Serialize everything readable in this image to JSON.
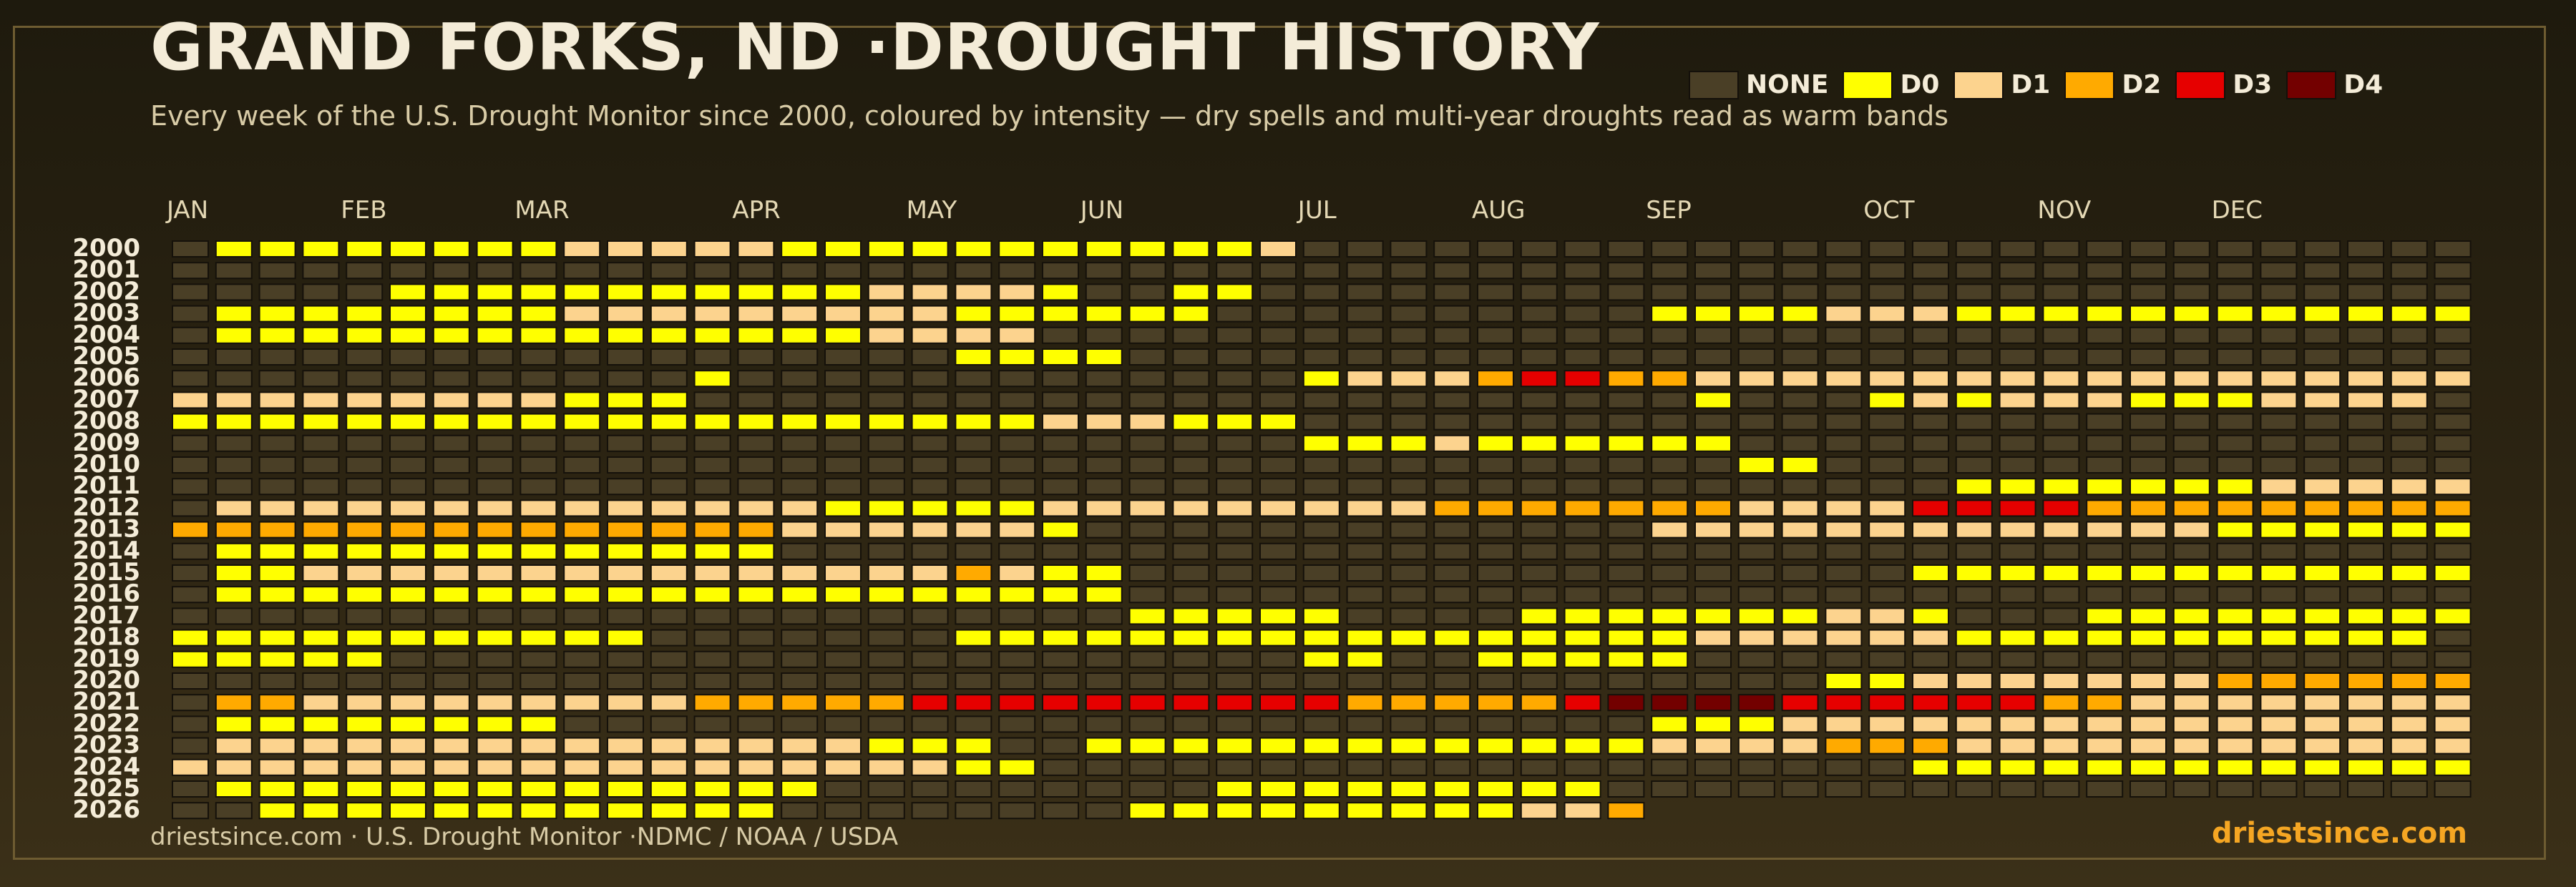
{
  "title": "GRAND FORKS, ND ·DROUGHT HISTORY",
  "subtitle": "Every week of the U.S. Drought Monitor since 2000, coloured by intensity — dry spells and multi-year droughts read as warm bands",
  "footer": {
    "source": "driestsince.com  · U.S. Drought Monitor ·NDMC / NOAA / USDA",
    "brand": "driestsince.com"
  },
  "colors": {
    "NONE": "#4a3f26",
    "D0": "#ffff00",
    "D1": "#fcd38e",
    "D2": "#ffaa00",
    "D3": "#e60000",
    "D4": "#730000",
    "background": "#2c2412",
    "text": "#f4ecd8",
    "accent": "#f5a623"
  },
  "legend": [
    {
      "key": "NONE",
      "label": "NONE"
    },
    {
      "key": "D0",
      "label": "D0"
    },
    {
      "key": "D1",
      "label": "D1"
    },
    {
      "key": "D2",
      "label": "D2"
    },
    {
      "key": "D3",
      "label": "D3"
    },
    {
      "key": "D4",
      "label": "D4"
    }
  ],
  "chart_data": {
    "type": "heatmap",
    "title": "GRAND FORKS, ND ·DROUGHT HISTORY",
    "x_axis": "week of year (1-53)",
    "month_labels": [
      "JAN",
      "FEB",
      "MAR",
      "APR",
      "MAY",
      "JUN",
      "JUL",
      "AUG",
      "SEP",
      "OCT",
      "NOV",
      "DEC"
    ],
    "month_start_weeks": [
      1,
      5,
      9,
      14,
      18,
      22,
      27,
      31,
      35,
      40,
      44,
      48
    ],
    "levels": [
      "NONE",
      "D0",
      "D1",
      "D2",
      "D3",
      "D4"
    ],
    "value_encoding": "-1 = no data; 0 = NONE; 1 = D0; 2 = D1; 3 = D2; 4 = D3; 5 = D4",
    "years": [
      "2000",
      "2001",
      "2002",
      "2003",
      "2004",
      "2005",
      "2006",
      "2007",
      "2008",
      "2009",
      "2010",
      "2011",
      "2012",
      "2013",
      "2014",
      "2015",
      "2016",
      "2017",
      "2018",
      "2019",
      "2020",
      "2021",
      "2022",
      "2023",
      "2024",
      "2025",
      "2026"
    ],
    "segments": {
      "2000": [
        [
          1,
          1,
          0
        ],
        [
          2,
          9,
          1
        ],
        [
          10,
          14,
          2
        ],
        [
          15,
          25,
          1
        ],
        [
          26,
          26,
          2
        ],
        [
          27,
          53,
          0
        ]
      ],
      "2001": [
        [
          1,
          53,
          0
        ]
      ],
      "2002": [
        [
          1,
          5,
          0
        ],
        [
          6,
          16,
          1
        ],
        [
          17,
          20,
          2
        ],
        [
          21,
          21,
          1
        ],
        [
          22,
          23,
          0
        ],
        [
          24,
          25,
          1
        ],
        [
          26,
          53,
          0
        ]
      ],
      "2003": [
        [
          1,
          1,
          0
        ],
        [
          2,
          9,
          1
        ],
        [
          10,
          18,
          2
        ],
        [
          19,
          24,
          1
        ],
        [
          25,
          34,
          0
        ],
        [
          35,
          38,
          1
        ],
        [
          39,
          41,
          2
        ],
        [
          42,
          53,
          1
        ]
      ],
      "2004": [
        [
          1,
          1,
          0
        ],
        [
          2,
          16,
          1
        ],
        [
          17,
          20,
          2
        ],
        [
          21,
          53,
          0
        ]
      ],
      "2005": [
        [
          1,
          18,
          0
        ],
        [
          19,
          22,
          1
        ],
        [
          23,
          53,
          0
        ]
      ],
      "2006": [
        [
          1,
          12,
          0
        ],
        [
          13,
          13,
          1
        ],
        [
          14,
          26,
          0
        ],
        [
          27,
          27,
          1
        ],
        [
          28,
          30,
          2
        ],
        [
          31,
          31,
          3
        ],
        [
          32,
          33,
          4
        ],
        [
          34,
          35,
          3
        ],
        [
          36,
          53,
          2
        ]
      ],
      "2007": [
        [
          1,
          9,
          2
        ],
        [
          10,
          12,
          1
        ],
        [
          13,
          35,
          0
        ],
        [
          36,
          36,
          1
        ],
        [
          37,
          39,
          0
        ],
        [
          40,
          40,
          1
        ],
        [
          41,
          41,
          2
        ],
        [
          42,
          42,
          1
        ],
        [
          43,
          45,
          2
        ],
        [
          46,
          48,
          1
        ],
        [
          49,
          52,
          2
        ],
        [
          53,
          53,
          0
        ]
      ],
      "2008": [
        [
          1,
          20,
          1
        ],
        [
          21,
          23,
          2
        ],
        [
          24,
          26,
          1
        ],
        [
          27,
          53,
          0
        ]
      ],
      "2009": [
        [
          1,
          26,
          0
        ],
        [
          27,
          29,
          1
        ],
        [
          30,
          30,
          2
        ],
        [
          31,
          36,
          1
        ],
        [
          37,
          53,
          0
        ]
      ],
      "2010": [
        [
          1,
          36,
          0
        ],
        [
          37,
          38,
          1
        ],
        [
          39,
          53,
          0
        ]
      ],
      "2011": [
        [
          1,
          41,
          0
        ],
        [
          42,
          48,
          1
        ],
        [
          49,
          53,
          2
        ]
      ],
      "2012": [
        [
          1,
          1,
          0
        ],
        [
          2,
          15,
          2
        ],
        [
          16,
          20,
          1
        ],
        [
          21,
          29,
          2
        ],
        [
          30,
          36,
          3
        ],
        [
          37,
          40,
          2
        ],
        [
          41,
          44,
          4
        ],
        [
          45,
          53,
          3
        ]
      ],
      "2013": [
        [
          1,
          14,
          3
        ],
        [
          15,
          20,
          2
        ],
        [
          21,
          21,
          1
        ],
        [
          22,
          34,
          0
        ],
        [
          35,
          47,
          2
        ],
        [
          48,
          53,
          1
        ]
      ],
      "2014": [
        [
          1,
          1,
          0
        ],
        [
          2,
          14,
          1
        ],
        [
          15,
          53,
          0
        ]
      ],
      "2015": [
        [
          1,
          1,
          0
        ],
        [
          2,
          3,
          1
        ],
        [
          4,
          14,
          2
        ],
        [
          15,
          18,
          2
        ],
        [
          19,
          19,
          3
        ],
        [
          20,
          20,
          2
        ],
        [
          21,
          22,
          1
        ],
        [
          23,
          40,
          0
        ],
        [
          41,
          53,
          1
        ]
      ],
      "2016": [
        [
          1,
          1,
          0
        ],
        [
          2,
          22,
          1
        ],
        [
          23,
          53,
          0
        ]
      ],
      "2017": [
        [
          1,
          22,
          0
        ],
        [
          23,
          27,
          1
        ],
        [
          28,
          31,
          0
        ],
        [
          32,
          38,
          1
        ],
        [
          39,
          40,
          2
        ],
        [
          41,
          41,
          1
        ],
        [
          42,
          44,
          0
        ],
        [
          45,
          53,
          1
        ]
      ],
      "2018": [
        [
          1,
          11,
          1
        ],
        [
          12,
          18,
          0
        ],
        [
          19,
          31,
          1
        ],
        [
          32,
          35,
          1
        ],
        [
          36,
          38,
          2
        ],
        [
          39,
          41,
          2
        ],
        [
          42,
          42,
          1
        ],
        [
          43,
          52,
          1
        ],
        [
          53,
          53,
          0
        ]
      ],
      "2019": [
        [
          1,
          5,
          1
        ],
        [
          6,
          26,
          0
        ],
        [
          27,
          28,
          1
        ],
        [
          29,
          30,
          0
        ],
        [
          31,
          35,
          1
        ],
        [
          36,
          53,
          0
        ]
      ],
      "2020": [
        [
          1,
          38,
          0
        ],
        [
          39,
          40,
          1
        ],
        [
          41,
          47,
          2
        ],
        [
          48,
          53,
          3
        ]
      ],
      "2021": [
        [
          1,
          1,
          0
        ],
        [
          2,
          3,
          3
        ],
        [
          4,
          12,
          2
        ],
        [
          13,
          17,
          3
        ],
        [
          18,
          27,
          4
        ],
        [
          28,
          32,
          3
        ],
        [
          33,
          33,
          4
        ],
        [
          34,
          37,
          5
        ],
        [
          38,
          39,
          4
        ],
        [
          40,
          41,
          4
        ],
        [
          42,
          43,
          4
        ],
        [
          44,
          45,
          3
        ],
        [
          46,
          53,
          2
        ]
      ],
      "2022": [
        [
          1,
          1,
          0
        ],
        [
          2,
          9,
          1
        ],
        [
          10,
          34,
          0
        ],
        [
          35,
          37,
          1
        ],
        [
          38,
          43,
          2
        ],
        [
          44,
          53,
          2
        ]
      ],
      "2023": [
        [
          1,
          1,
          0
        ],
        [
          2,
          16,
          2
        ],
        [
          17,
          19,
          1
        ],
        [
          20,
          21,
          0
        ],
        [
          22,
          34,
          1
        ],
        [
          35,
          38,
          2
        ],
        [
          39,
          41,
          3
        ],
        [
          42,
          42,
          2
        ],
        [
          43,
          47,
          2
        ],
        [
          48,
          53,
          2
        ]
      ],
      "2024": [
        [
          1,
          18,
          2
        ],
        [
          19,
          20,
          1
        ],
        [
          21,
          40,
          0
        ],
        [
          41,
          53,
          1
        ]
      ],
      "2025": [
        [
          1,
          1,
          0
        ],
        [
          2,
          15,
          1
        ],
        [
          16,
          24,
          0
        ],
        [
          25,
          33,
          1
        ],
        [
          34,
          53,
          0
        ]
      ],
      "2026": [
        [
          1,
          2,
          0
        ],
        [
          3,
          14,
          1
        ],
        [
          15,
          22,
          0
        ],
        [
          23,
          31,
          1
        ],
        [
          32,
          33,
          2
        ],
        [
          34,
          34,
          3
        ],
        [
          35,
          53,
          -1
        ]
      ]
    }
  }
}
